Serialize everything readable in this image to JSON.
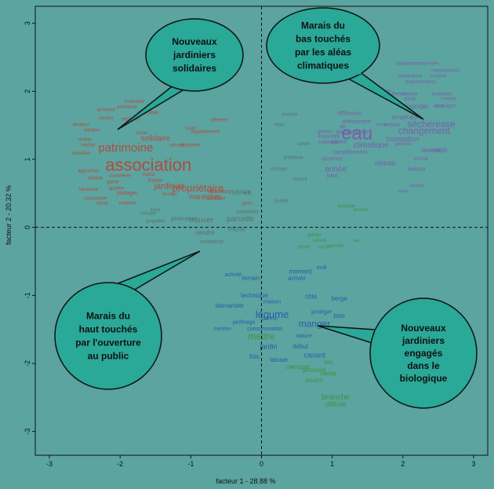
{
  "chart_data": {
    "type": "scatter",
    "xlabel": "facteur 1 - 28.88 %",
    "ylabel": "facteur 2 - 20.32 %",
    "xlim": [
      -3.2,
      3.2
    ],
    "ylim": [
      -3.35,
      3.25
    ],
    "x_ticks": [
      -3,
      -2,
      -1,
      0,
      1,
      2,
      3
    ],
    "y_ticks": [
      -3,
      -2,
      -1,
      0,
      1,
      2,
      3
    ],
    "colors": {
      "red": "#b24a3c",
      "purple": "#7a5ca8",
      "gray": "#5e6e6c",
      "blue": "#2c5aa8",
      "green": "#3b9440"
    },
    "annotations": [
      {
        "name": "bubble-nouveaux-jardiniers-solidaires",
        "lines": [
          "Nouveaux",
          "jardiniers",
          "solidaires"
        ]
      },
      {
        "name": "bubble-marais-du-bas",
        "lines": [
          "Marais du",
          "bas touchés",
          "par les aléas",
          "climatiques"
        ]
      },
      {
        "name": "bubble-marais-du-haut",
        "lines": [
          "Marais du",
          "haut touchés",
          "par l'ouverture",
          "au public"
        ]
      },
      {
        "name": "bubble-nouveaux-jardiniers-engages",
        "lines": [
          "Nouveaux",
          "jardiniers",
          "engagés",
          "dans le",
          "biologique"
        ]
      }
    ],
    "words": [
      {
        "t": "association",
        "x": -1.6,
        "y": 0.92,
        "s": 22,
        "c": "red"
      },
      {
        "t": "patrimoine",
        "x": -1.92,
        "y": 1.17,
        "s": 15,
        "c": "red"
      },
      {
        "t": "solidaire",
        "x": -1.5,
        "y": 1.3,
        "s": 10,
        "c": "red"
      },
      {
        "t": "jardinier",
        "x": -1.3,
        "y": 0.6,
        "s": 11,
        "c": "red"
      },
      {
        "t": "propriétaire",
        "x": -0.9,
        "y": 0.58,
        "s": 13,
        "c": "red"
      },
      {
        "t": "membre",
        "x": -1.6,
        "y": 1.68,
        "s": 7,
        "c": "red"
      },
      {
        "t": "annonce",
        "x": -2.2,
        "y": 1.72,
        "s": 6,
        "c": "red"
      },
      {
        "t": "contact",
        "x": -2.2,
        "y": 1.6,
        "s": 6,
        "c": "red"
      },
      {
        "t": "amateur",
        "x": -2.55,
        "y": 1.5,
        "s": 6,
        "c": "red"
      },
      {
        "t": "adhérer",
        "x": -2.4,
        "y": 1.42,
        "s": 6,
        "c": "red"
      },
      {
        "t": "expliquer",
        "x": -1.85,
        "y": 1.58,
        "s": 6,
        "c": "red"
      },
      {
        "t": "individuel",
        "x": -1.8,
        "y": 1.84,
        "s": 6,
        "c": "red"
      },
      {
        "t": "promener",
        "x": -1.9,
        "y": 1.76,
        "s": 6,
        "c": "red"
      },
      {
        "t": "rentrer",
        "x": -2.5,
        "y": 1.28,
        "s": 6,
        "c": "red"
      },
      {
        "t": "michel",
        "x": -2.45,
        "y": 1.2,
        "s": 6,
        "c": "red"
      },
      {
        "t": "fumation",
        "x": -2.55,
        "y": 1.08,
        "s": 6,
        "c": "red"
      },
      {
        "t": "envie",
        "x": -1.7,
        "y": 1.38,
        "s": 6,
        "c": "red"
      },
      {
        "t": "différent",
        "x": -0.6,
        "y": 1.57,
        "s": 6,
        "c": "red"
      },
      {
        "t": "souci",
        "x": -1.0,
        "y": 1.45,
        "s": 6,
        "c": "red"
      },
      {
        "t": "régulièrement",
        "x": -0.8,
        "y": 1.4,
        "s": 6,
        "c": "red"
      },
      {
        "t": "conseil",
        "x": -1.2,
        "y": 1.2,
        "s": 6,
        "c": "red"
      },
      {
        "t": "jardinière",
        "x": -1.0,
        "y": 1.2,
        "s": 6,
        "c": "red"
      },
      {
        "t": "approcher",
        "x": -2.45,
        "y": 0.82,
        "s": 6,
        "c": "red"
      },
      {
        "t": "considérer",
        "x": -2.0,
        "y": 0.75,
        "s": 6,
        "c": "red"
      },
      {
        "t": "dizaine",
        "x": -2.35,
        "y": 0.72,
        "s": 6,
        "c": "red"
      },
      {
        "t": "parler",
        "x": -2.1,
        "y": 0.66,
        "s": 6,
        "c": "red"
      },
      {
        "t": "appeler",
        "x": -2.05,
        "y": 0.57,
        "s": 6,
        "c": "red"
      },
      {
        "t": "partager",
        "x": -1.9,
        "y": 0.5,
        "s": 7,
        "c": "red"
      },
      {
        "t": "bénévole",
        "x": -2.45,
        "y": 0.55,
        "s": 6,
        "c": "red"
      },
      {
        "t": "conscience",
        "x": -2.35,
        "y": 0.42,
        "s": 6,
        "c": "red"
      },
      {
        "t": "vision",
        "x": -2.25,
        "y": 0.35,
        "s": 6,
        "c": "red"
      },
      {
        "t": "matériel",
        "x": -1.9,
        "y": 0.35,
        "s": 6,
        "c": "red"
      },
      {
        "t": "bourgo",
        "x": -1.3,
        "y": 0.48,
        "s": 6,
        "c": "red"
      },
      {
        "t": "mairie",
        "x": -1.6,
        "y": 0.77,
        "s": 6,
        "c": "red"
      },
      {
        "t": "barque",
        "x": -1.5,
        "y": 0.68,
        "s": 6,
        "c": "red"
      },
      {
        "t": "maraîcher",
        "x": -0.8,
        "y": 0.45,
        "s": 9,
        "c": "red"
      },
      {
        "t": "abandon",
        "x": -0.6,
        "y": 0.52,
        "s": 7,
        "c": "red"
      },
      {
        "t": "décéder",
        "x": -0.65,
        "y": 0.42,
        "s": 7,
        "c": "red"
      },
      {
        "t": "marais",
        "x": -0.3,
        "y": 0.52,
        "s": 9,
        "c": "gray"
      },
      {
        "t": "gens",
        "x": -0.2,
        "y": 0.35,
        "s": 6,
        "c": "red"
      },
      {
        "t": "trouver",
        "x": -0.85,
        "y": 0.1,
        "s": 10,
        "c": "gray"
      },
      {
        "t": "parcelle",
        "x": -0.3,
        "y": 0.12,
        "s": 10,
        "c": "gray"
      },
      {
        "t": "friche",
        "x": -0.35,
        "y": -0.02,
        "s": 9,
        "c": "gray"
      },
      {
        "t": "vendre",
        "x": -0.8,
        "y": -0.08,
        "s": 8,
        "c": "gray"
      },
      {
        "t": "entretenir",
        "x": -0.7,
        "y": -0.22,
        "s": 7,
        "c": "gray"
      },
      {
        "t": "entretien",
        "x": -0.2,
        "y": 0.22,
        "s": 7,
        "c": "gray"
      },
      {
        "t": "état",
        "x": -0.2,
        "y": 0.5,
        "s": 6,
        "c": "gray"
      },
      {
        "t": "propriété",
        "x": -1.5,
        "y": 0.08,
        "s": 6,
        "c": "gray"
      },
      {
        "t": "génération",
        "x": -1.1,
        "y": 0.12,
        "s": 7,
        "c": "gray"
      },
      {
        "t": "louer",
        "x": -1.5,
        "y": 0.25,
        "s": 6,
        "c": "gray"
      },
      {
        "t": "hectare",
        "x": -1.6,
        "y": 0.2,
        "s": 6,
        "c": "gray"
      },
      {
        "t": "légume",
        "x": 0.15,
        "y": -1.28,
        "s": 13,
        "c": "blue"
      },
      {
        "t": "manger",
        "x": 0.75,
        "y": -1.42,
        "s": 12,
        "c": "blue"
      },
      {
        "t": "mettre",
        "x": 0.0,
        "y": -1.6,
        "s": 12,
        "c": "green"
      },
      {
        "t": "jardin",
        "x": 0.1,
        "y": -1.75,
        "s": 9,
        "c": "blue"
      },
      {
        "t": "canard",
        "x": 0.75,
        "y": -1.88,
        "s": 9,
        "c": "blue"
      },
      {
        "t": "début",
        "x": 0.55,
        "y": -1.75,
        "s": 8,
        "c": "blue"
      },
      {
        "t": "bio",
        "x": 0.95,
        "y": -1.98,
        "s": 8,
        "c": "green"
      },
      {
        "t": "produire",
        "x": 0.75,
        "y": -2.1,
        "s": 8,
        "c": "green"
      },
      {
        "t": "herbe",
        "x": 0.95,
        "y": -2.15,
        "s": 8,
        "c": "green"
      },
      {
        "t": "branche",
        "x": 1.05,
        "y": -2.5,
        "s": 10,
        "c": "green"
      },
      {
        "t": "difficile",
        "x": 1.05,
        "y": -2.6,
        "s": 9,
        "c": "green"
      },
      {
        "t": "nourrir",
        "x": 0.75,
        "y": -2.25,
        "s": 8,
        "c": "green"
      },
      {
        "t": "vie",
        "x": 0.4,
        "y": -2.05,
        "s": 8,
        "c": "green"
      },
      {
        "t": "couper",
        "x": 0.55,
        "y": -2.05,
        "s": 8,
        "c": "green"
      },
      {
        "t": "protéger",
        "x": 0.85,
        "y": -1.25,
        "s": 7,
        "c": "blue"
      },
      {
        "t": "berge",
        "x": 1.1,
        "y": -1.05,
        "s": 8,
        "c": "blue"
      },
      {
        "t": "bois",
        "x": 1.1,
        "y": -1.3,
        "s": 8,
        "c": "blue"
      },
      {
        "t": "côté",
        "x": 0.7,
        "y": -1.02,
        "s": 8,
        "c": "blue"
      },
      {
        "t": "arriver",
        "x": 0.5,
        "y": -0.75,
        "s": 8,
        "c": "blue"
      },
      {
        "t": "moment",
        "x": 0.55,
        "y": -0.65,
        "s": 8,
        "c": "blue"
      },
      {
        "t": "outil",
        "x": 0.85,
        "y": -0.6,
        "s": 7,
        "c": "blue"
      },
      {
        "t": "culture",
        "x": 0.82,
        "y": -0.2,
        "s": 6,
        "c": "green"
      },
      {
        "t": "garder",
        "x": 0.75,
        "y": -0.12,
        "s": 6,
        "c": "green"
      },
      {
        "t": "semer",
        "x": 0.6,
        "y": -0.3,
        "s": 6,
        "c": "green"
      },
      {
        "t": "rendre",
        "x": 0.9,
        "y": -0.3,
        "s": 6,
        "c": "green"
      },
      {
        "t": "sec",
        "x": 1.35,
        "y": -0.2,
        "s": 6,
        "c": "green"
      },
      {
        "t": "humide",
        "x": 1.05,
        "y": -0.28,
        "s": 6,
        "c": "green"
      },
      {
        "t": "terrain",
        "x": -0.15,
        "y": -0.75,
        "s": 8,
        "c": "blue"
      },
      {
        "t": "activité",
        "x": -0.4,
        "y": -0.7,
        "s": 7,
        "c": "blue"
      },
      {
        "t": "demander",
        "x": -0.45,
        "y": -1.15,
        "s": 8,
        "c": "blue"
      },
      {
        "t": "technique",
        "x": -0.1,
        "y": -1.0,
        "s": 8,
        "c": "blue"
      },
      {
        "t": "maison",
        "x": 0.15,
        "y": -1.1,
        "s": 7,
        "c": "blue"
      },
      {
        "t": "consommation",
        "x": 0.05,
        "y": -1.5,
        "s": 7,
        "c": "blue"
      },
      {
        "t": "fois",
        "x": -0.1,
        "y": -1.9,
        "s": 8,
        "c": "blue"
      },
      {
        "t": "laisser",
        "x": 0.25,
        "y": -1.95,
        "s": 8,
        "c": "blue"
      },
      {
        "t": "nature",
        "x": 0.6,
        "y": -1.6,
        "s": 7,
        "c": "blue"
      },
      {
        "t": "poireau",
        "x": 0.12,
        "y": -1.35,
        "s": 6,
        "c": "blue"
      },
      {
        "t": "bambou",
        "x": -0.55,
        "y": -1.5,
        "s": 6,
        "c": "blue"
      },
      {
        "t": "jardinage",
        "x": -0.25,
        "y": -1.4,
        "s": 7,
        "c": "blue"
      },
      {
        "t": "eau",
        "x": 1.35,
        "y": 1.38,
        "s": 24,
        "c": "purple"
      },
      {
        "t": "sécheresse",
        "x": 2.4,
        "y": 1.52,
        "s": 12,
        "c": "purple"
      },
      {
        "t": "changement",
        "x": 2.3,
        "y": 1.42,
        "s": 12,
        "c": "purple"
      },
      {
        "t": "inondation",
        "x": 2.0,
        "y": 1.3,
        "s": 9,
        "c": "purple"
      },
      {
        "t": "inonder",
        "x": 2.2,
        "y": 1.78,
        "s": 9,
        "c": "purple"
      },
      {
        "t": "climatique",
        "x": 1.55,
        "y": 1.2,
        "s": 10,
        "c": "purple"
      },
      {
        "t": "année",
        "x": 1.05,
        "y": 0.85,
        "s": 10,
        "c": "purple"
      },
      {
        "t": "niveau",
        "x": 1.75,
        "y": 0.95,
        "s": 9,
        "c": "purple"
      },
      {
        "t": "dernier",
        "x": 2.4,
        "y": 1.13,
        "s": 8,
        "c": "purple"
      },
      {
        "t": "remplir",
        "x": 2.5,
        "y": 1.13,
        "s": 8,
        "c": "purple"
      },
      {
        "t": "température",
        "x": 2.05,
        "y": 1.61,
        "s": 7,
        "c": "purple"
      },
      {
        "t": "amont",
        "x": 1.85,
        "y": 1.5,
        "s": 7,
        "c": "purple"
      },
      {
        "t": "phénomène",
        "x": 1.35,
        "y": 1.55,
        "s": 7,
        "c": "purple"
      },
      {
        "t": "différence",
        "x": 1.25,
        "y": 1.67,
        "s": 7,
        "c": "purple"
      },
      {
        "t": "rivière",
        "x": 1.1,
        "y": 1.25,
        "s": 7,
        "c": "purple"
      },
      {
        "t": "manque",
        "x": 0.95,
        "y": 1.25,
        "s": 7,
        "c": "purple"
      },
      {
        "t": "complètement",
        "x": 1.25,
        "y": 1.1,
        "s": 7,
        "c": "purple"
      },
      {
        "t": "observer",
        "x": 1.0,
        "y": 1.0,
        "s": 7,
        "c": "purple"
      },
      {
        "t": "haut",
        "x": 1.0,
        "y": 0.75,
        "s": 7,
        "c": "purple"
      },
      {
        "t": "baisser",
        "x": 2.2,
        "y": 0.85,
        "s": 7,
        "c": "purple"
      },
      {
        "t": "arrosage",
        "x": 1.7,
        "y": 2.0,
        "s": 6,
        "c": "purple"
      },
      {
        "t": "réchauffement",
        "x": 1.85,
        "y": 1.95,
        "s": 6,
        "c": "purple"
      },
      {
        "t": "humide",
        "x": 2.1,
        "y": 1.95,
        "s": 6,
        "c": "purple"
      },
      {
        "t": "américain",
        "x": 2.55,
        "y": 1.95,
        "s": 6,
        "c": "purple"
      },
      {
        "t": "anticiper",
        "x": 2.6,
        "y": 1.78,
        "s": 7,
        "c": "purple"
      },
      {
        "t": "mm",
        "x": 2.5,
        "y": 1.78,
        "s": 7,
        "c": "purple"
      },
      {
        "t": "creuser",
        "x": 2.65,
        "y": 1.88,
        "s": 6,
        "c": "purple"
      },
      {
        "t": "adaptation",
        "x": 2.05,
        "y": 2.4,
        "s": 6,
        "c": "purple"
      },
      {
        "t": "descendre",
        "x": 2.35,
        "y": 2.4,
        "s": 6,
        "c": "purple"
      },
      {
        "t": "manifestation",
        "x": 2.6,
        "y": 2.3,
        "s": 6,
        "c": "purple"
      },
      {
        "t": "hydraulique",
        "x": 2.1,
        "y": 2.22,
        "s": 6,
        "c": "purple"
      },
      {
        "t": "soutenir",
        "x": 2.5,
        "y": 2.22,
        "s": 6,
        "c": "purple"
      },
      {
        "t": "réglementation",
        "x": 2.25,
        "y": 2.13,
        "s": 6,
        "c": "purple"
      },
      {
        "t": "pluie",
        "x": 2.1,
        "y": 1.88,
        "s": 7,
        "c": "purple"
      },
      {
        "t": "zone",
        "x": 1.7,
        "y": 1.5,
        "s": 6,
        "c": "purple"
      },
      {
        "t": "chaud",
        "x": 1.42,
        "y": 1.4,
        "s": 6,
        "c": "purple"
      },
      {
        "t": "question",
        "x": 1.2,
        "y": 1.4,
        "s": 7,
        "c": "purple"
      },
      {
        "t": "gestion",
        "x": 0.9,
        "y": 1.4,
        "s": 6,
        "c": "purple"
      },
      {
        "t": "disparaître",
        "x": 0.95,
        "y": 1.33,
        "s": 6,
        "c": "purple"
      },
      {
        "t": "été",
        "x": 1.15,
        "y": 1.47,
        "s": 6,
        "c": "purple"
      },
      {
        "t": "normal",
        "x": 2.25,
        "y": 1.0,
        "s": 6,
        "c": "purple"
      },
      {
        "t": "hiver",
        "x": 2.0,
        "y": 0.52,
        "s": 6,
        "c": "purple"
      },
      {
        "t": "récolte",
        "x": 2.2,
        "y": 0.6,
        "s": 6,
        "c": "purple"
      },
      {
        "t": "pénurie",
        "x": 2.0,
        "y": 1.22,
        "s": 6,
        "c": "purple"
      },
      {
        "t": "assister",
        "x": 0.4,
        "y": 1.65,
        "s": 6,
        "c": "gray"
      },
      {
        "t": "mois",
        "x": 0.25,
        "y": 1.5,
        "s": 6,
        "c": "gray"
      },
      {
        "t": "avenir",
        "x": 0.6,
        "y": 1.22,
        "s": 6,
        "c": "gray"
      },
      {
        "t": "problème",
        "x": 0.45,
        "y": 1.02,
        "s": 6,
        "c": "gray"
      },
      {
        "t": "nettoyer",
        "x": 0.25,
        "y": 0.85,
        "s": 6,
        "c": "gray"
      },
      {
        "t": "couloir",
        "x": 0.55,
        "y": 0.7,
        "s": 6,
        "c": "gray"
      },
      {
        "t": "pluidot",
        "x": 0.28,
        "y": 0.38,
        "s": 6,
        "c": "gray"
      },
      {
        "t": "exemple",
        "x": 1.2,
        "y": 0.3,
        "s": 6,
        "c": "green"
      },
      {
        "t": "arroser",
        "x": 1.4,
        "y": 0.25,
        "s": 6,
        "c": "green"
      }
    ]
  }
}
